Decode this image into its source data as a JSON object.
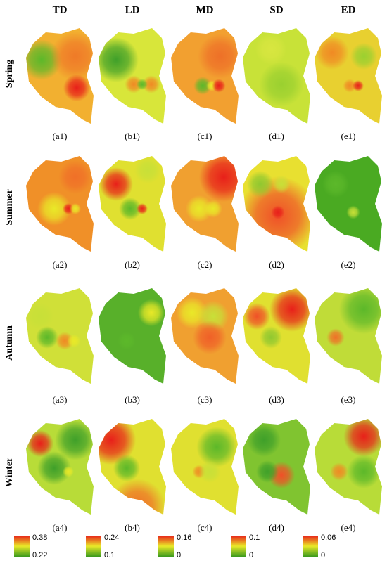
{
  "columns": [
    "TD",
    "LD",
    "MD",
    "SD",
    "ED"
  ],
  "rows": [
    {
      "label": "Spring",
      "panels": [
        "(a1)",
        "(b1)",
        "(c1)",
        "(d1)",
        "(e1)"
      ]
    },
    {
      "label": "Summer",
      "panels": [
        "(a2)",
        "(b2)",
        "(c2)",
        "(d2)",
        "(e2)"
      ]
    },
    {
      "label": "Autumn",
      "panels": [
        "(a3)",
        "(b3)",
        "(c3)",
        "(d3)",
        "(e3)"
      ]
    },
    {
      "label": "Winter",
      "panels": [
        "(a4)",
        "(b4)",
        "(c4)",
        "(d4)",
        "(e4)"
      ]
    }
  ],
  "legends": [
    {
      "max": "0.38",
      "min": "0.22"
    },
    {
      "max": "0.24",
      "min": "0.1"
    },
    {
      "max": "0.16",
      "min": "0"
    },
    {
      "max": "0.1",
      "min": "0"
    },
    {
      "max": "0.06",
      "min": "0"
    }
  ]
}
